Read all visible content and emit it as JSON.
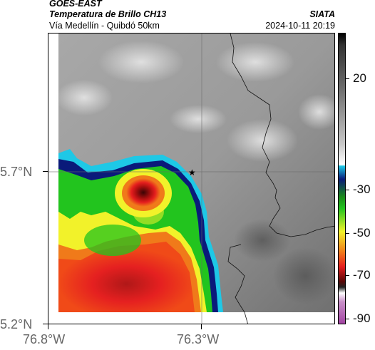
{
  "header": {
    "source": "GOES-EAST",
    "product": "Temperatura de Brillo CH13",
    "org": "SIATA",
    "region": "Vía Medellín - Quibdó 50km",
    "datetime": "2024-10-11 20:19"
  },
  "map": {
    "lat_ticks": [
      "5.7°N",
      "5.2°N"
    ],
    "lon_ticks": [
      "76.8°W",
      "76.3°W"
    ],
    "marker_symbol": "★",
    "marker_name": "star-marker"
  },
  "colorbar": {
    "tick_labels": [
      "20",
      "-30",
      "-50",
      "-70",
      "-90"
    ],
    "range": [
      -95,
      35
    ],
    "colors": {
      "warm_gray_light": "#d8d8d8",
      "warm_gray_dark": "#4a4a4a",
      "cyan": "#1ec8e6",
      "blue": "#0a1a7a",
      "green": "#22c41e",
      "yellow": "#f2f22a",
      "orange": "#f07a1a",
      "red": "#e51e1e",
      "dark_red": "#5a0808",
      "magenta": "#b05ab0"
    }
  }
}
